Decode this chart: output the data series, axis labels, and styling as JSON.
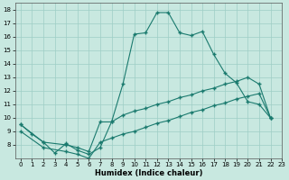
{
  "xlabel": "Humidex (Indice chaleur)",
  "xlim": [
    -0.5,
    23
  ],
  "ylim": [
    7,
    18.5
  ],
  "xticks": [
    0,
    1,
    2,
    3,
    4,
    5,
    6,
    7,
    8,
    9,
    10,
    11,
    12,
    13,
    14,
    15,
    16,
    17,
    18,
    19,
    20,
    21,
    22,
    23
  ],
  "yticks": [
    8,
    9,
    10,
    11,
    12,
    13,
    14,
    15,
    16,
    17,
    18
  ],
  "background_color": "#c8e8e0",
  "grid_color": "#9ecec5",
  "line_color": "#1a7a6e",
  "line1_y": [
    9.5,
    8.8,
    8.2,
    7.4,
    8.1,
    7.6,
    7.3,
    7.8,
    9.7,
    12.5,
    16.2,
    16.3,
    17.8,
    17.8,
    16.3,
    16.1,
    16.4,
    14.7,
    13.3,
    12.6,
    11.2,
    11.0,
    10.0,
    null
  ],
  "line2_x": [
    0,
    2,
    4,
    5,
    6,
    7,
    8,
    9,
    10,
    11,
    12,
    13,
    14,
    15,
    16,
    17,
    18,
    19,
    20,
    21,
    22
  ],
  "line2_y": [
    9.5,
    8.2,
    8.0,
    7.8,
    7.5,
    9.7,
    9.7,
    10.2,
    10.5,
    10.7,
    11.0,
    11.2,
    11.5,
    11.7,
    12.0,
    12.2,
    12.5,
    12.7,
    13.0,
    12.5,
    10.0
  ],
  "line3_x": [
    0,
    2,
    4,
    5,
    6,
    7,
    8,
    9,
    10,
    11,
    12,
    13,
    14,
    15,
    16,
    17,
    18,
    19,
    20,
    21,
    22
  ],
  "line3_y": [
    9.0,
    7.8,
    7.5,
    7.3,
    7.0,
    8.2,
    8.5,
    8.8,
    9.0,
    9.3,
    9.6,
    9.8,
    10.1,
    10.4,
    10.6,
    10.9,
    11.1,
    11.4,
    11.6,
    11.8,
    10.0
  ]
}
